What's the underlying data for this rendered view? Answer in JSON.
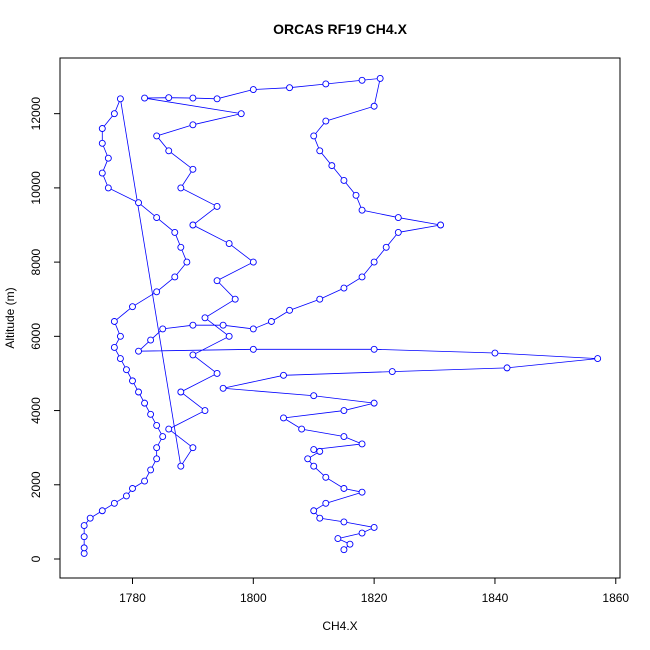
{
  "chart_data": {
    "type": "scatter",
    "title": "ORCAS RF19 CH4.X",
    "x_label": "CH4.X",
    "y_label": "Altitude (m)",
    "lines": true,
    "color": "#0000ff",
    "grid": false,
    "xlim": [
      1768,
      1860.7
    ],
    "ylim": [
      -512,
      13500
    ],
    "xticks": [
      1780,
      1800,
      1820,
      1840,
      1860
    ],
    "yticks": [
      0,
      2000,
      4000,
      6000,
      8000,
      10000,
      12000
    ],
    "x": [
      1772,
      1772,
      1772,
      1772,
      1773,
      1775,
      1777,
      1779,
      1780,
      1782,
      1783,
      1784,
      1784,
      1785,
      1784,
      1783,
      1782,
      1781,
      1780,
      1779,
      1778,
      1777,
      1778,
      1777,
      1780,
      1784,
      1787,
      1789,
      1788,
      1787,
      1784,
      1781,
      1776,
      1775,
      1776,
      1775,
      1775,
      1777,
      1778,
      1788,
      1790,
      1786,
      1792,
      1788,
      1794,
      1790,
      1796,
      1792,
      1797,
      1794,
      1800,
      1796,
      1790,
      1794,
      1788,
      1790,
      1786,
      1784,
      1790,
      1798,
      1782,
      1786,
      1790,
      1794,
      1800,
      1806,
      1812,
      1818,
      1821,
      1820,
      1812,
      1810,
      1811,
      1813,
      1815,
      1817,
      1818,
      1824,
      1831,
      1824,
      1822,
      1820,
      1818,
      1815,
      1811,
      1806,
      1803,
      1800,
      1795,
      1790,
      1785,
      1783,
      1781,
      1800,
      1820,
      1840,
      1857,
      1842,
      1823,
      1805,
      1795,
      1810,
      1820,
      1815,
      1805,
      1808,
      1815,
      1818,
      1810,
      1811,
      1809,
      1810,
      1812,
      1815,
      1818,
      1812,
      1810,
      1811,
      1815,
      1820,
      1818,
      1814,
      1816,
      1815
    ],
    "values": [
      150,
      300,
      600,
      900,
      1100,
      1300,
      1500,
      1700,
      1900,
      2100,
      2400,
      2700,
      3000,
      3300,
      3600,
      3900,
      4200,
      4500,
      4800,
      5100,
      5400,
      5700,
      6000,
      6400,
      6800,
      7200,
      7600,
      8000,
      8400,
      8800,
      9200,
      9600,
      10000,
      10400,
      10800,
      11200,
      11600,
      12000,
      12400,
      2500,
      3000,
      3500,
      4000,
      4500,
      5000,
      5500,
      6000,
      6500,
      7000,
      7500,
      8000,
      8500,
      9000,
      9500,
      10000,
      10500,
      11000,
      11400,
      11700,
      12000,
      12420,
      12430,
      12420,
      12400,
      12650,
      12700,
      12800,
      12900,
      12950,
      12200,
      11800,
      11400,
      11000,
      10600,
      10200,
      9800,
      9400,
      9200,
      9000,
      8800,
      8400,
      8000,
      7600,
      7300,
      7000,
      6700,
      6400,
      6200,
      6300,
      6300,
      6200,
      5900,
      5600,
      5650,
      5650,
      5550,
      5400,
      5150,
      5050,
      4950,
      4600,
      4400,
      4200,
      4000,
      3800,
      3500,
      3300,
      3100,
      2950,
      2900,
      2700,
      2500,
      2200,
      1900,
      1800,
      1500,
      1300,
      1100,
      1000,
      850,
      700,
      550,
      400,
      250
    ]
  }
}
